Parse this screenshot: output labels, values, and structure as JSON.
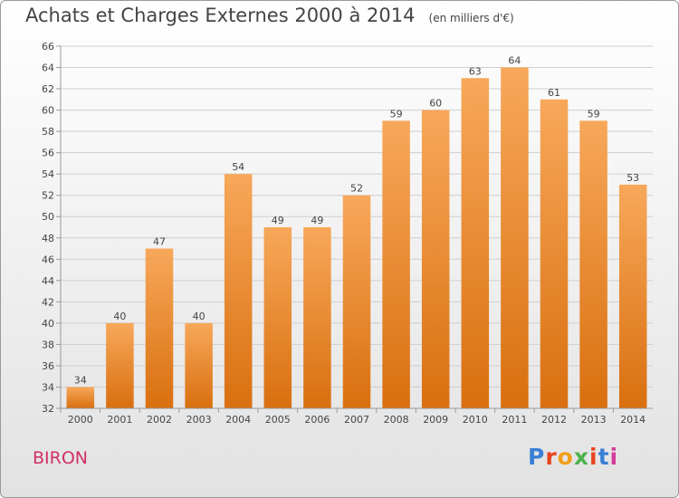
{
  "header": {
    "title": "Achats et Charges Externes 2000 à 2014",
    "subtitle": "(en milliers d'€)"
  },
  "footer": {
    "commune": "BIRON",
    "logo_text": "Proxiti",
    "logo_colors": [
      "#3a7fd5",
      "#e8441e",
      "#f2a01a",
      "#4db34d",
      "#e8441e",
      "#3a7fd5",
      "#d43a9a"
    ]
  },
  "colors": {
    "bar_top": "#f7a85a",
    "bar_bottom": "#d96f0f",
    "grid": "#cfcfcf",
    "axis": "#9a9a9a",
    "text": "#444444"
  },
  "chart_data": {
    "type": "bar",
    "title": "Achats et Charges Externes 2000 à 2014",
    "subtitle": "(en milliers d'€)",
    "xlabel": "",
    "ylabel": "",
    "categories": [
      "2000",
      "2001",
      "2002",
      "2003",
      "2004",
      "2005",
      "2006",
      "2007",
      "2008",
      "2009",
      "2010",
      "2011",
      "2012",
      "2013",
      "2014"
    ],
    "values": [
      34,
      40,
      47,
      40,
      54,
      49,
      49,
      52,
      59,
      60,
      63,
      64,
      61,
      59,
      53
    ],
    "ylim": [
      32,
      66
    ],
    "yticks": [
      32,
      34,
      36,
      38,
      40,
      42,
      44,
      46,
      48,
      50,
      52,
      54,
      56,
      58,
      60,
      62,
      64,
      66
    ],
    "grid": true,
    "data_labels": true
  }
}
